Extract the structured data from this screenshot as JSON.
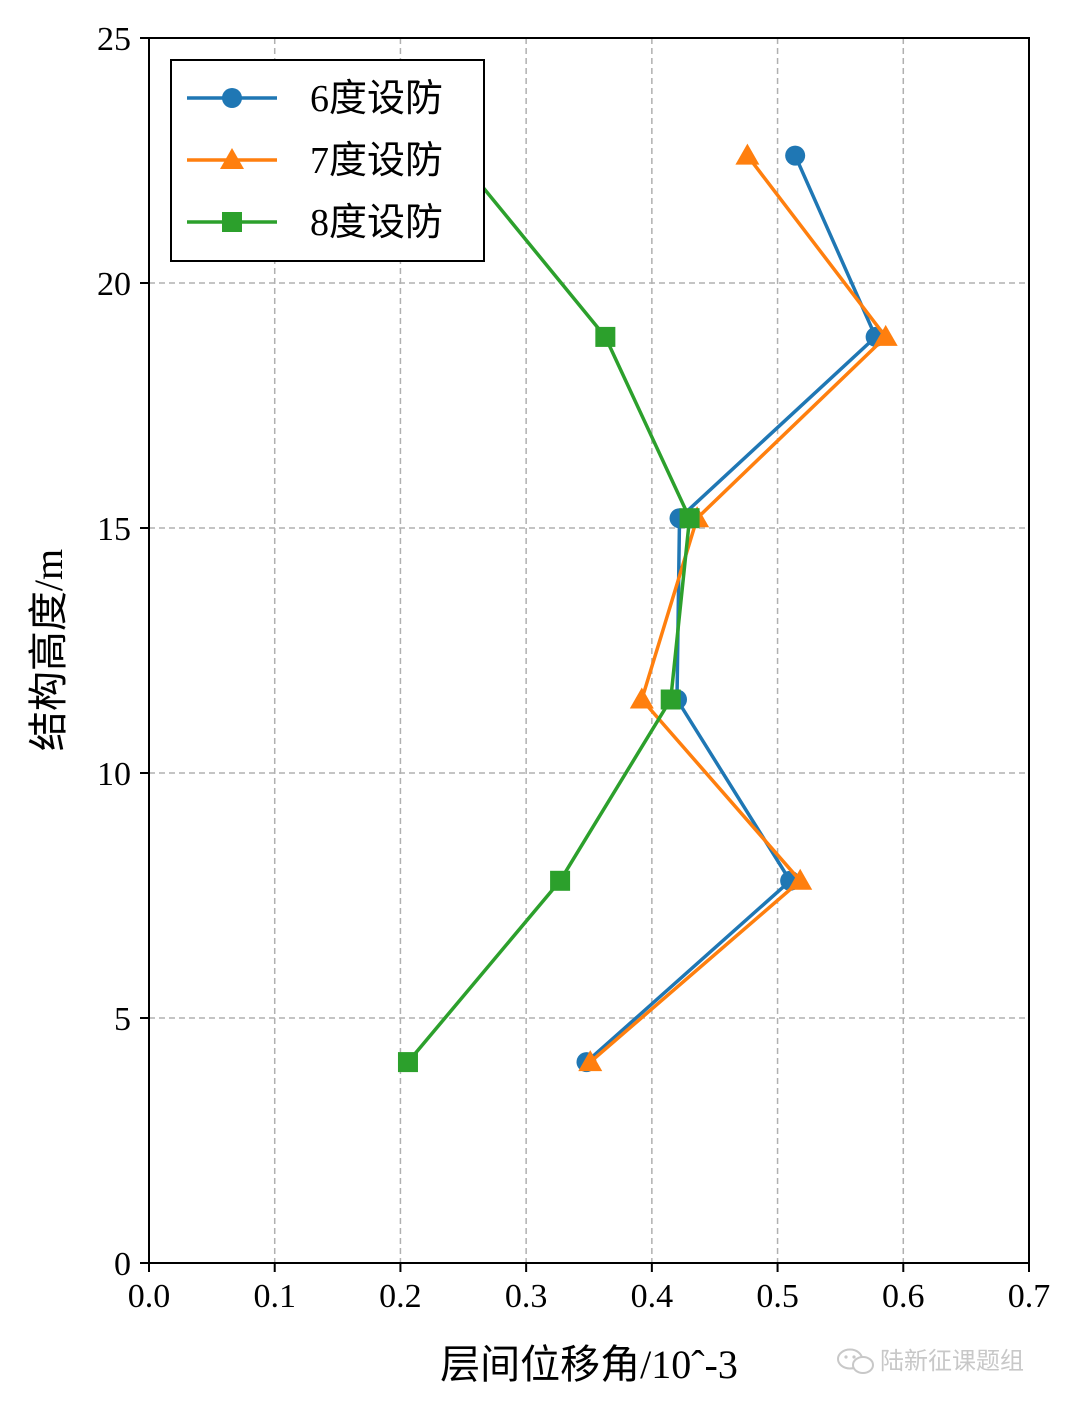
{
  "chart_data": {
    "type": "line",
    "xlabel": "层间位移角/10ˆ-3",
    "ylabel": "结构高度/m",
    "xlim": [
      0.0,
      0.7
    ],
    "ylim": [
      0,
      25
    ],
    "xticks": [
      0.0,
      0.1,
      0.2,
      0.3,
      0.4,
      0.5,
      0.6,
      0.7
    ],
    "xtick_labels": [
      "0.0",
      "0.1",
      "0.2",
      "0.3",
      "0.4",
      "0.5",
      "0.6",
      "0.7"
    ],
    "yticks": [
      0,
      5,
      10,
      15,
      20,
      25
    ],
    "ytick_labels": [
      "0",
      "5",
      "10",
      "15",
      "20",
      "25"
    ],
    "grid": true,
    "legend_position": "top-left",
    "series": [
      {
        "name": "6度设防",
        "color": "#1f77b4",
        "marker": "circle",
        "points": [
          [
            0.348,
            4.1
          ],
          [
            0.51,
            7.8
          ],
          [
            0.42,
            11.5
          ],
          [
            0.422,
            15.2
          ],
          [
            0.578,
            18.9
          ],
          [
            0.514,
            22.6
          ]
        ]
      },
      {
        "name": "7度设防",
        "color": "#ff7f0e",
        "marker": "triangle",
        "points": [
          [
            0.351,
            4.1
          ],
          [
            0.518,
            7.8
          ],
          [
            0.392,
            11.5
          ],
          [
            0.436,
            15.2
          ],
          [
            0.586,
            18.9
          ],
          [
            0.476,
            22.6
          ]
        ]
      },
      {
        "name": "8度设防",
        "color": "#2ca02c",
        "marker": "square",
        "points": [
          [
            0.206,
            4.1
          ],
          [
            0.327,
            7.8
          ],
          [
            0.415,
            11.5
          ],
          [
            0.43,
            15.2
          ],
          [
            0.363,
            18.9
          ],
          [
            0.245,
            22.6
          ]
        ]
      }
    ]
  },
  "watermark": {
    "icon": "wechat-icon",
    "text": "陆新征课题组"
  }
}
